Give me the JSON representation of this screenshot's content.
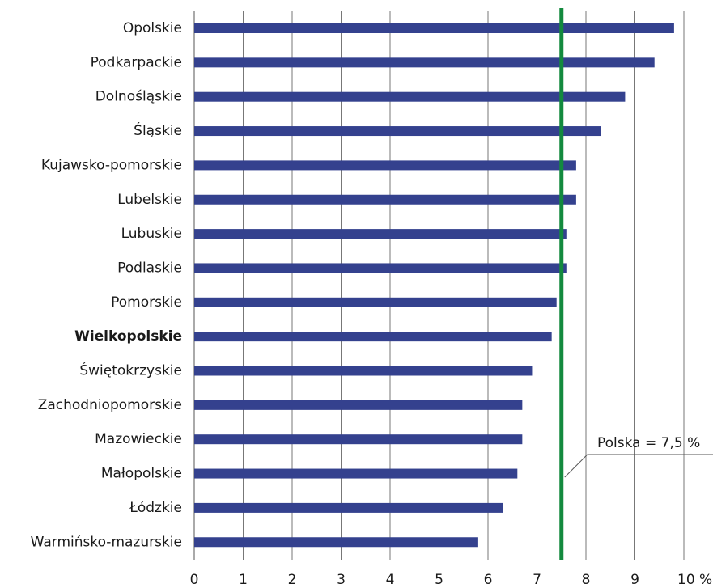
{
  "chart_data": {
    "type": "hbar",
    "categories": [
      "Opolskie",
      "Podkarpackie",
      "Dolnośląskie",
      "Śląskie",
      "Kujawsko-pomorskie",
      "Lubelskie",
      "Lubuskie",
      "Podlaskie",
      "Pomorskie",
      "Wielkopolskie",
      "Świętokrzyskie",
      "Zachodniopomorskie",
      "Mazowieckie",
      "Małopolskie",
      "Łódzkie",
      "Warmińsko-mazurskie"
    ],
    "values": [
      9.8,
      9.4,
      8.8,
      8.3,
      7.8,
      7.8,
      7.6,
      7.6,
      7.4,
      7.3,
      6.9,
      6.7,
      6.7,
      6.6,
      6.3,
      5.8
    ],
    "color": "#34418e",
    "bold_category": 9,
    "xlim": [
      0,
      10
    ],
    "xticks": [
      0,
      1,
      2,
      3,
      4,
      5,
      6,
      7,
      8,
      9,
      {
        "value": 10,
        "label": "10 %"
      }
    ],
    "grid": true,
    "reference_line": {
      "value": 7.5,
      "label": "Polska = 7,5 %",
      "color": "#138a3e"
    }
  }
}
